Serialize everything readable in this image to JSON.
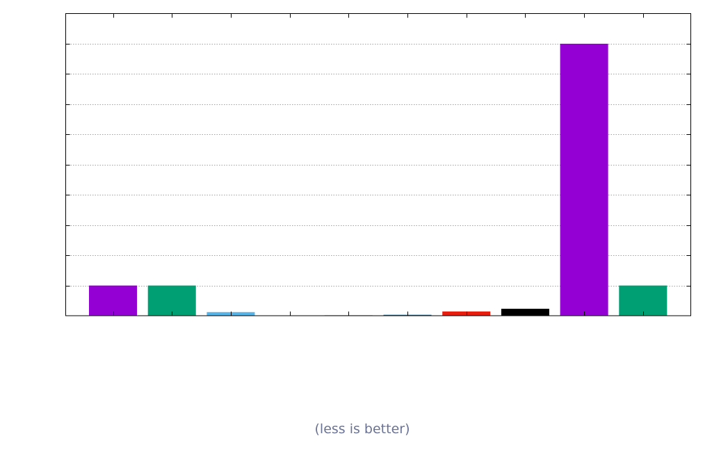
{
  "caption": "(less is better)",
  "chart_data": {
    "type": "bar",
    "title": "",
    "xlabel": "",
    "ylabel": "",
    "ylim": [
      0,
      10
    ],
    "y_ticks": [
      1,
      2,
      3,
      4,
      5,
      6,
      7,
      8,
      9
    ],
    "grid": true,
    "grid_axis": "y",
    "legend": "none",
    "tick_labels_shown": false,
    "series": [
      {
        "values": [
          1.0,
          1.0,
          0.12,
          0.0,
          0.02,
          0.03,
          0.14,
          0.23,
          9.0,
          1.0
        ],
        "colors": [
          "#9400d3",
          "#009e73",
          "#56b4e9",
          "#e69f00",
          "#f0e442",
          "#0072b2",
          "#e51e10",
          "#000000",
          "#9400d3",
          "#009e73"
        ]
      }
    ]
  }
}
